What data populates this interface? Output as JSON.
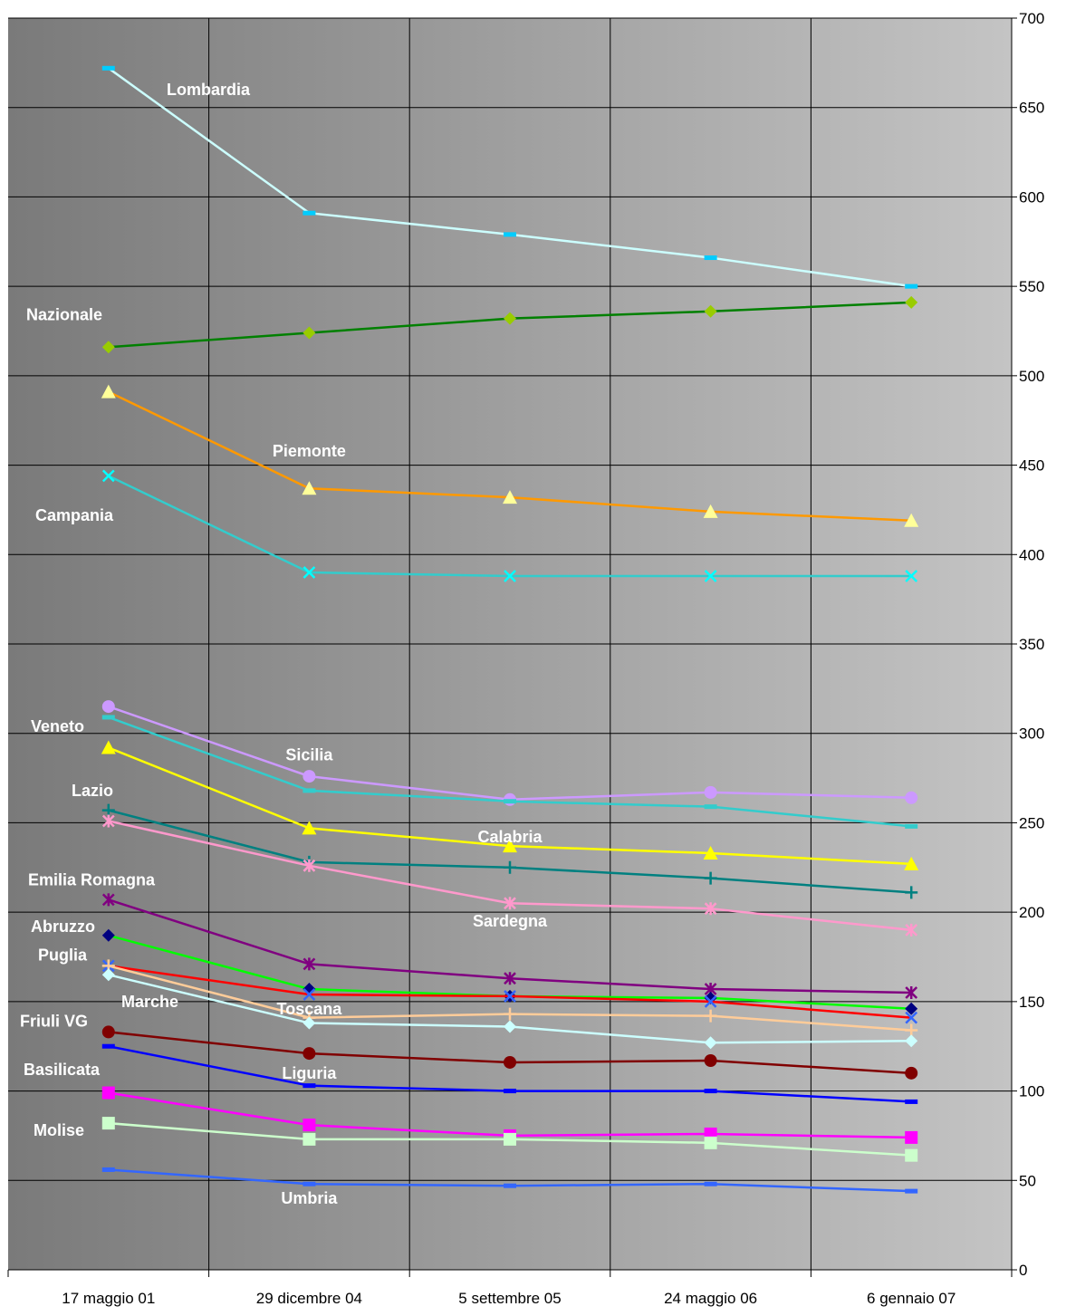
{
  "chart_data": {
    "type": "line",
    "categories": [
      "17 maggio 01",
      "29 dicembre 04",
      "5 settembre 05",
      "24 maggio 06",
      "6 gennaio 07"
    ],
    "ylim": [
      0,
      700
    ],
    "yticks": [
      0,
      50,
      100,
      150,
      200,
      250,
      300,
      350,
      400,
      450,
      500,
      550,
      600,
      650,
      700
    ],
    "y_axis_side": "right",
    "grid": true,
    "background": "gradient dark grey to light grey",
    "series": [
      {
        "name": "Lombardia",
        "values": [
          672,
          591,
          579,
          566,
          550
        ],
        "color": "#ccffff",
        "marker": "dash",
        "marker_color": "#00ccff"
      },
      {
        "name": "Nazionale",
        "values": [
          516,
          524,
          532,
          536,
          541
        ],
        "color": "#008000",
        "marker": "diamond",
        "marker_color": "#99cc00"
      },
      {
        "name": "Piemonte",
        "values": [
          491,
          437,
          432,
          424,
          419
        ],
        "color": "#ff9900",
        "marker": "triangle",
        "marker_color": "#ffff99"
      },
      {
        "name": "Campania",
        "values": [
          444,
          390,
          388,
          388,
          388
        ],
        "color": "#33cccc",
        "marker": "x",
        "marker_color": "#00ffff"
      },
      {
        "name": "Sicilia",
        "values": [
          315,
          276,
          263,
          267,
          264
        ],
        "color": "#cc99ff",
        "marker": "circle",
        "marker_color": "#cc99ff"
      },
      {
        "name": "Veneto",
        "values": [
          309,
          268,
          262,
          259,
          248
        ],
        "color": "#33cccc",
        "marker": "dash",
        "marker_color": "#33cccc"
      },
      {
        "name": "Calabria",
        "values": [
          292,
          247,
          237,
          233,
          227
        ],
        "color": "#ffff00",
        "marker": "triangle",
        "marker_color": "#ffff00"
      },
      {
        "name": "Lazio",
        "values": [
          257,
          228,
          225,
          219,
          211
        ],
        "color": "#008080",
        "marker": "plus",
        "marker_color": "#008080"
      },
      {
        "name": "Sardegna",
        "values": [
          251,
          226,
          205,
          202,
          190
        ],
        "color": "#ff99cc",
        "marker": "star",
        "marker_color": "#ff99cc"
      },
      {
        "name": "Emilia Romagna",
        "values": [
          207,
          171,
          163,
          157,
          155
        ],
        "color": "#800080",
        "marker": "star",
        "marker_color": "#800080"
      },
      {
        "name": "Abruzzo",
        "values": [
          187,
          157,
          153,
          152,
          146
        ],
        "color": "#00ff00",
        "marker": "diamond",
        "marker_color": "#000080"
      },
      {
        "name": "Puglia",
        "values": [
          170,
          154,
          153,
          150,
          141
        ],
        "color": "#ff0000",
        "marker": "x",
        "marker_color": "#3366ff"
      },
      {
        "name": "Marche",
        "values": [
          170,
          141,
          143,
          142,
          134
        ],
        "color": "#ffcc99",
        "marker": "plus",
        "marker_color": "#ffcc99"
      },
      {
        "name": "Toscana",
        "values": [
          165,
          138,
          136,
          127,
          128
        ],
        "color": "#ccffff",
        "marker": "diamond",
        "marker_color": "#ccffff"
      },
      {
        "name": "Friuli VG",
        "values": [
          133,
          121,
          116,
          117,
          110
        ],
        "color": "#800000",
        "marker": "circle",
        "marker_color": "#800000"
      },
      {
        "name": "Liguria",
        "values": [
          125,
          103,
          100,
          100,
          94
        ],
        "color": "#0000ff",
        "marker": "dash",
        "marker_color": "#0000ff"
      },
      {
        "name": "Basilicata",
        "values": [
          99,
          81,
          75,
          76,
          74
        ],
        "color": "#ff00ff",
        "marker": "square",
        "marker_color": "#ff00ff"
      },
      {
        "name": "Molise",
        "values": [
          82,
          73,
          73,
          71,
          64
        ],
        "color": "#ccffcc",
        "marker": "square",
        "marker_color": "#ccffcc"
      },
      {
        "name": "Umbria",
        "values": [
          56,
          48,
          47,
          48,
          44
        ],
        "color": "#3366ff",
        "marker": "dash",
        "marker_color": "#3366ff"
      }
    ],
    "annotations": [
      {
        "text": "Lombardia",
        "x": "17 maggio 01",
        "y": 660
      },
      {
        "text": "Nazionale",
        "x": "17 maggio 01",
        "y": 534
      },
      {
        "text": "Piemonte",
        "x": "29 dicembre 04",
        "y": 458
      },
      {
        "text": "Campania",
        "x": "17 maggio 01",
        "y": 422
      },
      {
        "text": "Veneto",
        "x": "17 maggio 01",
        "y": 304
      },
      {
        "text": "Sicilia",
        "x": "29 dicembre 04",
        "y": 288
      },
      {
        "text": "Lazio",
        "x": "17 maggio 01",
        "y": 268
      },
      {
        "text": "Calabria",
        "x": "5 settembre 05",
        "y": 242
      },
      {
        "text": "Emilia Romagna",
        "x": "17 maggio 01",
        "y": 218
      },
      {
        "text": "Abruzzo",
        "x": "17 maggio 01",
        "y": 192
      },
      {
        "text": "Sardegna",
        "x": "5 settembre 05",
        "y": 195
      },
      {
        "text": "Puglia",
        "x": "17 maggio 01",
        "y": 176
      },
      {
        "text": "Marche",
        "x": "17 maggio 01",
        "y": 150
      },
      {
        "text": "Toscana",
        "x": "29 dicembre 04",
        "y": 146
      },
      {
        "text": "Friuli VG",
        "x": "17 maggio 01",
        "y": 139
      },
      {
        "text": "Liguria",
        "x": "29 dicembre 04",
        "y": 110
      },
      {
        "text": "Basilicata",
        "x": "17 maggio 01",
        "y": 112
      },
      {
        "text": "Molise",
        "x": "17 maggio 01",
        "y": 78
      },
      {
        "text": "Umbria",
        "x": "29 dicembre 04",
        "y": 40
      }
    ]
  }
}
